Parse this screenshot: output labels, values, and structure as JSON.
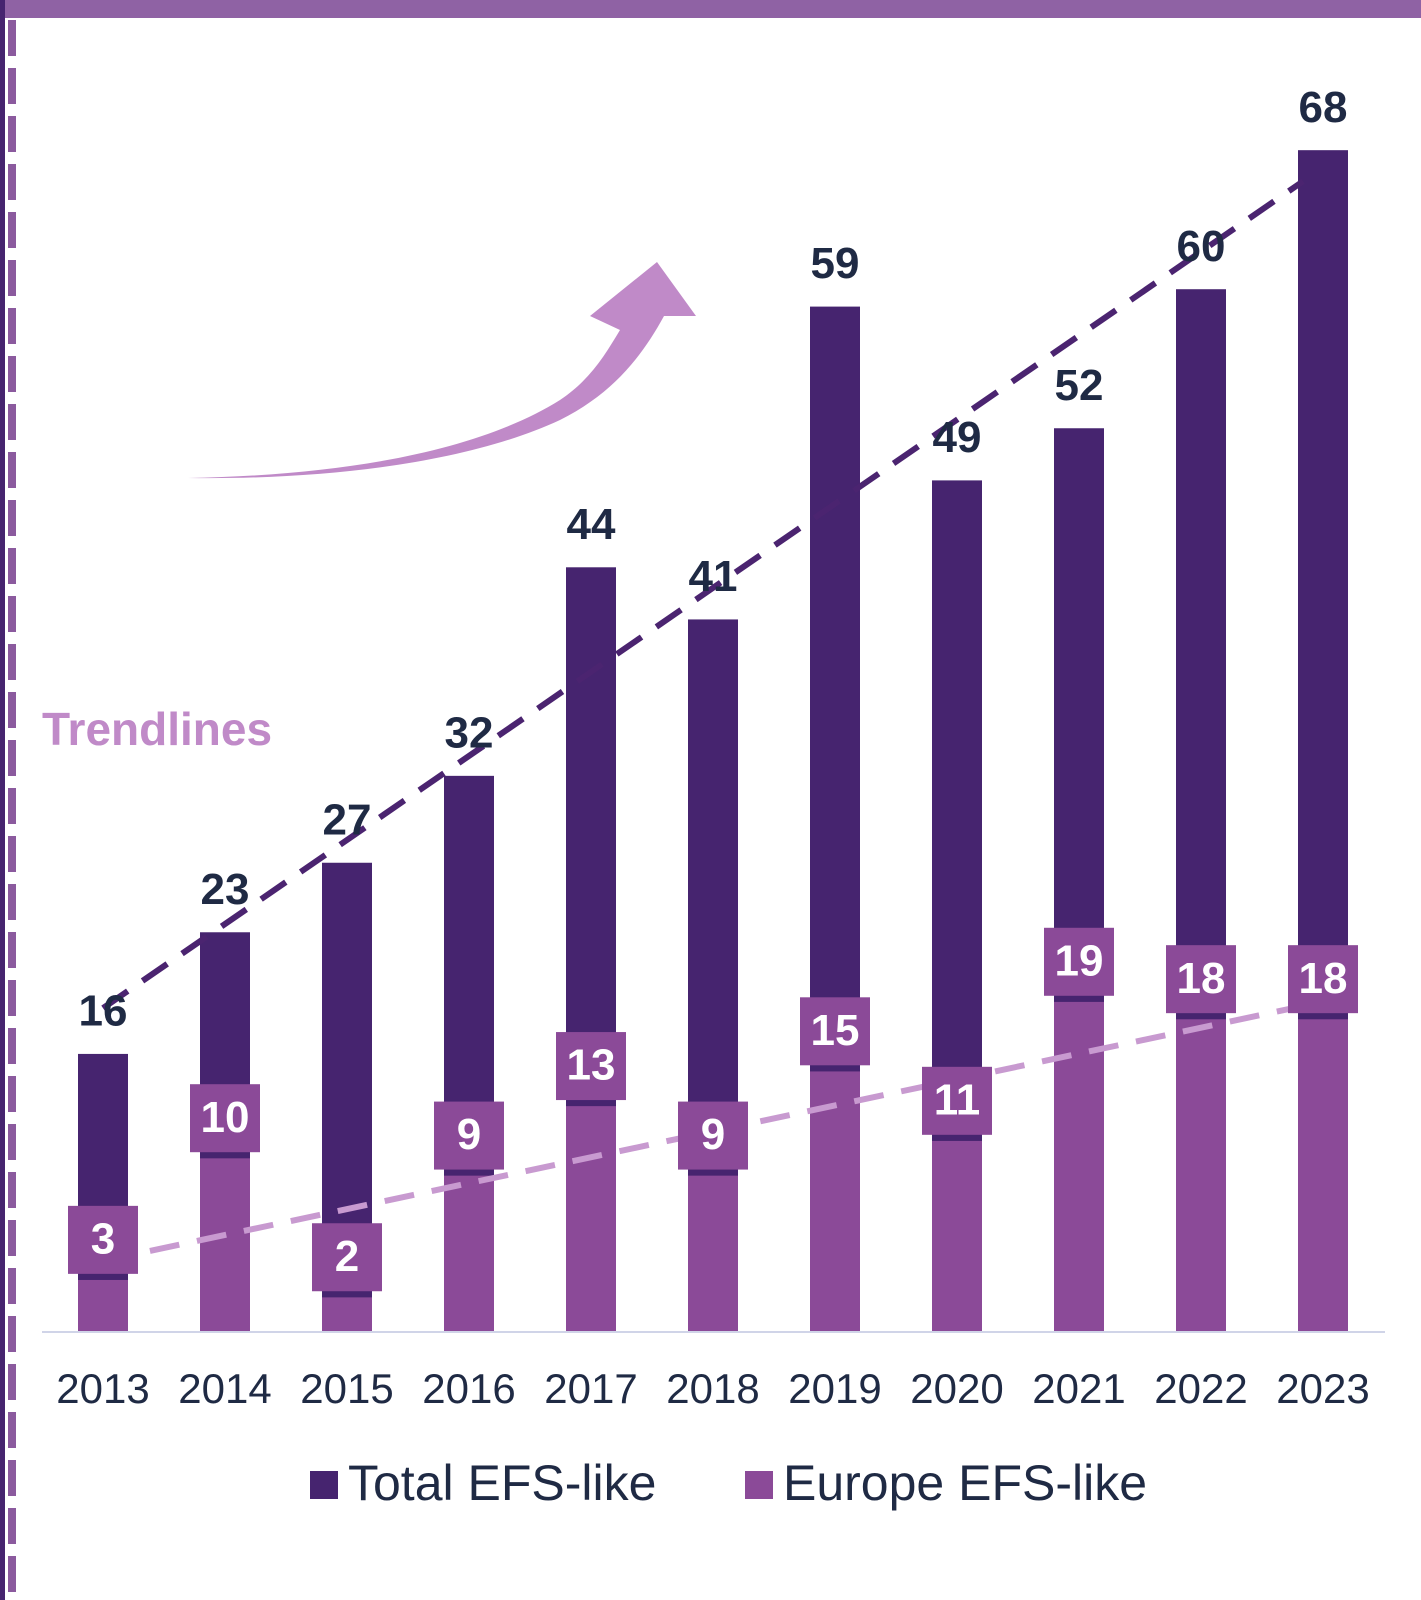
{
  "chart_data": {
    "type": "bar",
    "annotation": "Trendlines",
    "categories": [
      "2013",
      "2014",
      "2015",
      "2016",
      "2017",
      "2018",
      "2019",
      "2020",
      "2021",
      "2022",
      "2023"
    ],
    "series": [
      {
        "name": "Total EFS-like",
        "color": "#46246f",
        "trend_color": "#4b2470",
        "values": [
          16,
          23,
          27,
          32,
          44,
          41,
          59,
          49,
          52,
          60,
          68
        ]
      },
      {
        "name": "Europe EFS-like",
        "color": "#8b4a98",
        "trend_color": "#c89ad0",
        "values": [
          3,
          10,
          2,
          9,
          13,
          9,
          15,
          11,
          19,
          18,
          18
        ]
      }
    ],
    "ylim": [
      0,
      74
    ],
    "grid": false,
    "trendlines": true,
    "legend": "bottom"
  }
}
